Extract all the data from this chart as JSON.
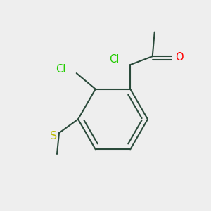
{
  "bg_color": "#eeeeee",
  "bond_color": "#2a4a3a",
  "bond_width": 1.5,
  "cl_color": "#22cc00",
  "o_color": "#ff0000",
  "s_color": "#bbbb00",
  "font_size": 10.5,
  "cl1_label": "Cl",
  "cl2_label": "Cl",
  "o_label": "O",
  "s_label": "S",
  "xlim": [
    0.0,
    1.0
  ],
  "ylim": [
    0.0,
    1.0
  ]
}
